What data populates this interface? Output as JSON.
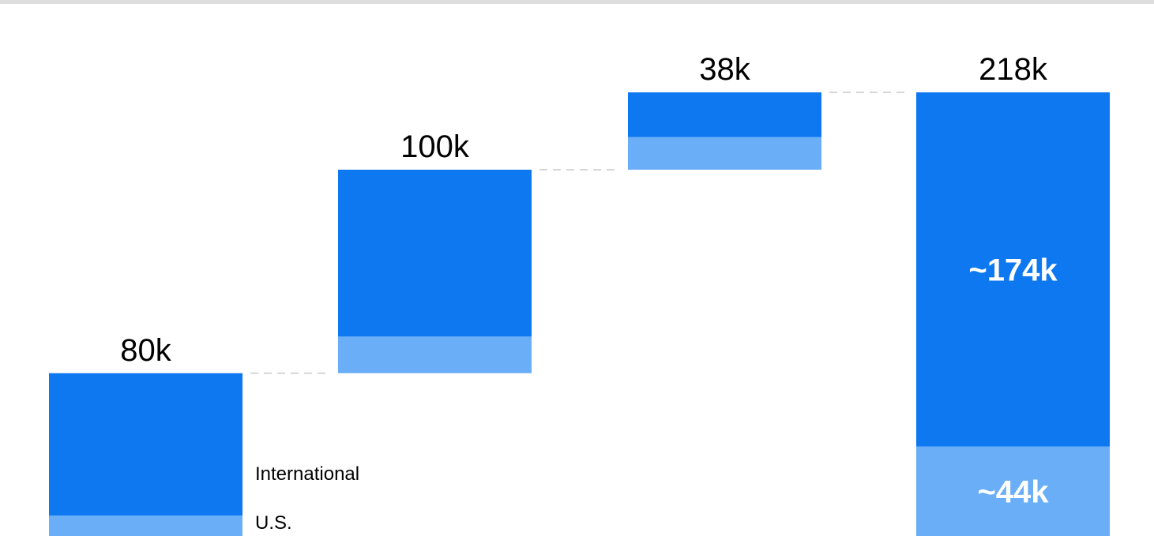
{
  "chart_data": {
    "type": "bar",
    "subtype": "waterfall-stacked",
    "categories": [
      "",
      "",
      "",
      ""
    ],
    "totals": [
      80,
      100,
      38,
      218
    ],
    "total_labels": [
      "80k",
      "100k",
      "38k",
      "218k"
    ],
    "cumulative_final_bar": true,
    "series": [
      {
        "name": "U.S.",
        "values": [
          10,
          18,
          16,
          44
        ],
        "color": "#6aaef7"
      },
      {
        "name": "International",
        "values": [
          70,
          82,
          22,
          174
        ],
        "color": "#0e78f0"
      }
    ],
    "segment_labels": {
      "final_bar": {
        "International": "~174k",
        "U.S.": "~44k"
      }
    },
    "legend": {
      "placement": "right-of-first-bar",
      "entries": [
        "International",
        "U.S."
      ]
    },
    "ylim": [
      0,
      218
    ],
    "grid": false,
    "connectors": "dashed"
  },
  "colors": {
    "international": "#0e78f0",
    "us": "#6aaef7",
    "connector": "#d6d6d6",
    "top_rule": "#dedede"
  }
}
